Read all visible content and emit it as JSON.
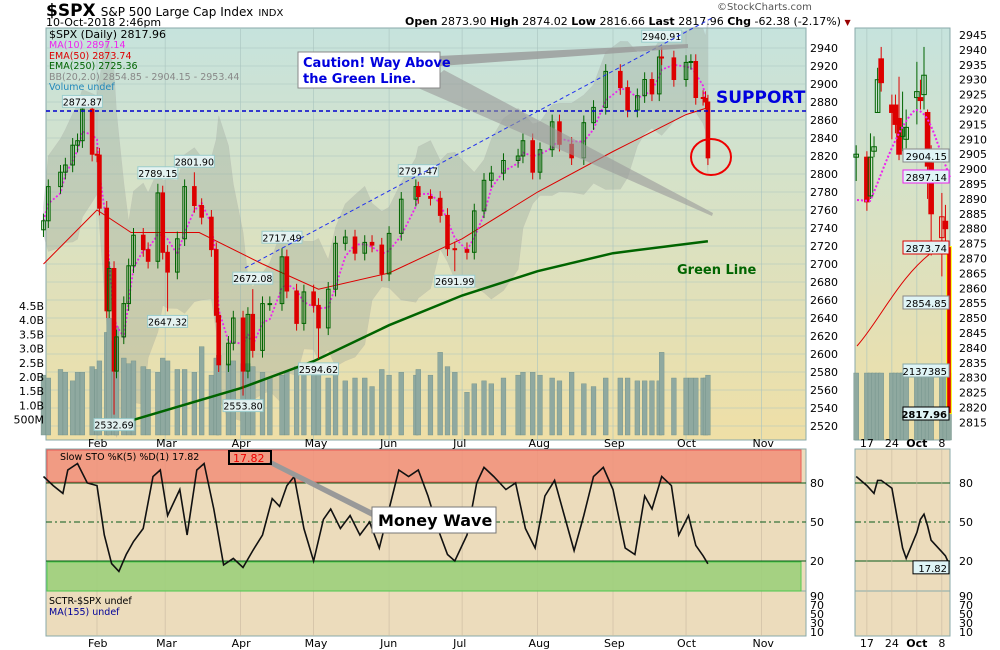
{
  "header": {
    "symbol": "$SPX",
    "name": "S&P 500 Large Cap Index",
    "exchange": "INDX",
    "datetime": "10-Oct-2018 2:46pm",
    "watermark": "©StockCharts.com",
    "open_label": "Open",
    "open": "2873.90",
    "high_label": "High",
    "high": "2874.02",
    "low_label": "Low",
    "low": "2816.66",
    "last_label": "Last",
    "last": "2817.96",
    "chg_label": "Chg",
    "chg": "-62.38 (-2.17%)",
    "chg_icon": "triangle-down-icon"
  },
  "legend": {
    "price": "$SPX (Daily) 2817.96",
    "ma10": "MA(10) 2897.14",
    "ema50": "EMA(50) 2873.74",
    "ema250": "EMA(250) 2725.36",
    "bb": "BB(20,2.0) 2854.85 - 2904.15 - 2953.44",
    "volume": "Volume undef"
  },
  "annotations": {
    "caution": "Caution! Way Above",
    "caution2": "the Green Line.",
    "support": "SUPPORT",
    "green_line": "Green Line",
    "money_wave": "Money Wave"
  },
  "colors": {
    "up": "#006400",
    "down": "#dd0000",
    "ma10": "#ee22ee",
    "ema50": "#dd0000",
    "ema250": "#006400",
    "support": "#0000cc",
    "annotation": "#0000dd"
  },
  "lower": {
    "sto_legend": "Slow STO %K(5) %D(1) 17.82",
    "sto_value": "17.82",
    "sctr_legend": "SCTR-$SPX undef",
    "ma155_legend": "MA(155) undef"
  },
  "side": {
    "labels": [
      "2904.15",
      "2897.14",
      "2873.74",
      "2854.85",
      "2137385",
      "2817.96"
    ],
    "sto_value": "17.82"
  },
  "chart_data": [
    {
      "type": "candlestick",
      "title": "$SPX (Daily)",
      "ylim": [
        2515,
        2950
      ],
      "yticks": [
        2520,
        2540,
        2560,
        2580,
        2600,
        2620,
        2640,
        2660,
        2680,
        2700,
        2720,
        2740,
        2760,
        2780,
        2800,
        2820,
        2840,
        2860,
        2880,
        2900,
        2920,
        2940
      ],
      "xticks": [
        "Feb",
        "Mar",
        "Apr",
        "May",
        "Jun",
        "Jul",
        "Aug",
        "Sep",
        "Oct",
        "Nov"
      ],
      "volume_ticks": [
        "4.5B",
        "4.0B",
        "3.5B",
        "3.0B",
        "2.5B",
        "2.0B",
        "1.5B",
        "1.0B",
        "500M"
      ],
      "support_level": 2872.87,
      "price_labels": [
        {
          "d": "2018-01-26",
          "p": 2872.87,
          "t": "2872.87"
        },
        {
          "d": "2018-02-08",
          "p": 2532.69,
          "t": "2532.69"
        },
        {
          "d": "2018-02-26",
          "p": 2789.15,
          "t": "2789.15"
        },
        {
          "d": "2018-03-02",
          "p": 2647.32,
          "t": "2647.32"
        },
        {
          "d": "2018-03-13",
          "p": 2801.9,
          "t": "2801.90"
        },
        {
          "d": "2018-04-02",
          "p": 2553.8,
          "t": "2553.80"
        },
        {
          "d": "2018-04-06",
          "p": 2672.08,
          "t": "2672.08"
        },
        {
          "d": "2018-04-18",
          "p": 2717.49,
          "t": "2717.49"
        },
        {
          "d": "2018-05-03",
          "p": 2594.62,
          "t": "2594.62"
        },
        {
          "d": "2018-06-13",
          "p": 2791.47,
          "t": "2791.47"
        },
        {
          "d": "2018-06-28",
          "p": 2691.99,
          "t": "2691.99"
        },
        {
          "d": "2018-09-21",
          "p": 2940.91,
          "t": "2940.91"
        }
      ],
      "closes": [
        [
          "2018-01-10",
          2748,
          2.1
        ],
        [
          "2018-01-12",
          2786,
          2.0
        ],
        [
          "2018-01-17",
          2802,
          2.3
        ],
        [
          "2018-01-19",
          2810,
          2.2
        ],
        [
          "2018-01-22",
          2832,
          1.9
        ],
        [
          "2018-01-24",
          2837,
          2.2
        ],
        [
          "2018-01-26",
          2872,
          2.2
        ],
        [
          "2018-01-30",
          2822,
          2.4
        ],
        [
          "2018-02-01",
          2821,
          2.3
        ],
        [
          "2018-02-02",
          2762,
          2.6
        ],
        [
          "2018-02-05",
          2648,
          3.6
        ],
        [
          "2018-02-06",
          2695,
          4.1
        ],
        [
          "2018-02-08",
          2581,
          3.3
        ],
        [
          "2018-02-09",
          2619,
          3.8
        ],
        [
          "2018-02-12",
          2656,
          2.7
        ],
        [
          "2018-02-14",
          2698,
          2.5
        ],
        [
          "2018-02-16",
          2732,
          2.6
        ],
        [
          "2018-02-20",
          2716,
          2.4
        ],
        [
          "2018-02-22",
          2703,
          2.3
        ],
        [
          "2018-02-26",
          2779,
          2.2
        ],
        [
          "2018-02-28",
          2713,
          2.7
        ],
        [
          "2018-03-02",
          2691,
          2.6
        ],
        [
          "2018-03-06",
          2728,
          2.3
        ],
        [
          "2018-03-09",
          2786,
          2.3
        ],
        [
          "2018-03-13",
          2765,
          2.2
        ],
        [
          "2018-03-16",
          2752,
          3.1
        ],
        [
          "2018-03-20",
          2716,
          2.1
        ],
        [
          "2018-03-22",
          2643,
          2.7
        ],
        [
          "2018-03-23",
          2588,
          2.8
        ],
        [
          "2018-03-27",
          2612,
          2.5
        ],
        [
          "2018-03-29",
          2640,
          2.6
        ],
        [
          "2018-04-02",
          2581,
          2.5
        ],
        [
          "2018-04-04",
          2644,
          2.5
        ],
        [
          "2018-04-06",
          2604,
          2.4
        ],
        [
          "2018-04-10",
          2656,
          2.2
        ],
        [
          "2018-04-13",
          2656,
          2.0
        ],
        [
          "2018-04-18",
          2708,
          2.1
        ],
        [
          "2018-04-20",
          2670,
          2.2
        ],
        [
          "2018-04-24",
          2634,
          2.4
        ],
        [
          "2018-04-27",
          2669,
          2.1
        ],
        [
          "2018-05-01",
          2654,
          2.2
        ],
        [
          "2018-05-03",
          2629,
          2.4
        ],
        [
          "2018-05-07",
          2672,
          2.0
        ],
        [
          "2018-05-10",
          2723,
          2.1
        ],
        [
          "2018-05-14",
          2730,
          1.9
        ],
        [
          "2018-05-18",
          2712,
          2.0
        ],
        [
          "2018-05-22",
          2724,
          2.0
        ],
        [
          "2018-05-25",
          2721,
          1.7
        ],
        [
          "2018-05-29",
          2689,
          2.3
        ],
        [
          "2018-06-01",
          2734,
          2.1
        ],
        [
          "2018-06-06",
          2772,
          2.2
        ],
        [
          "2018-06-12",
          2786,
          2.1
        ],
        [
          "2018-06-13",
          2775,
          2.3
        ],
        [
          "2018-06-18",
          2773,
          2.1
        ],
        [
          "2018-06-22",
          2754,
          2.9
        ],
        [
          "2018-06-25",
          2717,
          2.4
        ],
        [
          "2018-06-28",
          2716,
          2.2
        ],
        [
          "2018-07-03",
          2713,
          1.5
        ],
        [
          "2018-07-06",
          2759,
          1.8
        ],
        [
          "2018-07-10",
          2793,
          1.9
        ],
        [
          "2018-07-13",
          2801,
          1.8
        ],
        [
          "2018-07-18",
          2815,
          2.0
        ],
        [
          "2018-07-24",
          2820,
          2.1
        ],
        [
          "2018-07-26",
          2837,
          2.2
        ],
        [
          "2018-07-30",
          2802,
          2.2
        ],
        [
          "2018-08-02",
          2827,
          2.1
        ],
        [
          "2018-08-07",
          2858,
          2.0
        ],
        [
          "2018-08-10",
          2833,
          1.9
        ],
        [
          "2018-08-15",
          2818,
          2.2
        ],
        [
          "2018-08-20",
          2857,
          1.8
        ],
        [
          "2018-08-24",
          2874,
          1.7
        ],
        [
          "2018-08-29",
          2914,
          2.0
        ],
        [
          "2018-09-04",
          2896,
          2.0
        ],
        [
          "2018-09-07",
          2871,
          2.0
        ],
        [
          "2018-09-11",
          2887,
          1.9
        ],
        [
          "2018-09-14",
          2905,
          1.9
        ],
        [
          "2018-09-17",
          2889,
          1.9
        ],
        [
          "2018-09-20",
          2930,
          1.9
        ],
        [
          "2018-09-21",
          2929,
          2.9
        ],
        [
          "2018-09-26",
          2905,
          2.0
        ],
        [
          "2018-10-01",
          2924,
          2.0
        ],
        [
          "2018-10-03",
          2925,
          2.0
        ],
        [
          "2018-10-05",
          2885,
          2.0
        ],
        [
          "2018-10-08",
          2884,
          2.0
        ],
        [
          "2018-10-09",
          2880,
          2.0
        ],
        [
          "2018-10-10",
          2817.96,
          2.1
        ]
      ],
      "ema50": [
        [
          "2018-01-10",
          2700
        ],
        [
          "2018-02-01",
          2760
        ],
        [
          "2018-02-15",
          2735
        ],
        [
          "2018-03-15",
          2735
        ],
        [
          "2018-04-10",
          2700
        ],
        [
          "2018-05-03",
          2672
        ],
        [
          "2018-06-01",
          2690
        ],
        [
          "2018-07-01",
          2728
        ],
        [
          "2018-08-01",
          2780
        ],
        [
          "2018-09-01",
          2825
        ],
        [
          "2018-10-01",
          2866
        ],
        [
          "2018-10-10",
          2873.74
        ]
      ],
      "ema250": [
        [
          "2018-02-15",
          2526
        ],
        [
          "2018-04-01",
          2562
        ],
        [
          "2018-05-01",
          2592
        ],
        [
          "2018-06-01",
          2632
        ],
        [
          "2018-07-01",
          2665
        ],
        [
          "2018-08-01",
          2692
        ],
        [
          "2018-09-01",
          2712
        ],
        [
          "2018-10-10",
          2725.36
        ]
      ]
    },
    {
      "type": "line",
      "title": "Slow STO %K(5) %D(1)",
      "ylim": [
        0,
        100
      ],
      "yticks": [
        20,
        50,
        80
      ],
      "sctr_ticks": [
        90,
        70,
        50,
        30,
        10
      ],
      "values": [
        [
          "2018-01-10",
          85
        ],
        [
          "2018-01-14",
          78
        ],
        [
          "2018-01-18",
          72
        ],
        [
          "2018-01-20",
          90
        ],
        [
          "2018-01-24",
          95
        ],
        [
          "2018-01-28",
          80
        ],
        [
          "2018-02-01",
          78
        ],
        [
          "2018-02-04",
          40
        ],
        [
          "2018-02-07",
          18
        ],
        [
          "2018-02-10",
          12
        ],
        [
          "2018-02-13",
          25
        ],
        [
          "2018-02-16",
          35
        ],
        [
          "2018-02-20",
          45
        ],
        [
          "2018-02-24",
          85
        ],
        [
          "2018-02-27",
          90
        ],
        [
          "2018-03-02",
          55
        ],
        [
          "2018-03-07",
          75
        ],
        [
          "2018-03-10",
          40
        ],
        [
          "2018-03-14",
          90
        ],
        [
          "2018-03-17",
          95
        ],
        [
          "2018-03-21",
          60
        ],
        [
          "2018-03-25",
          17
        ],
        [
          "2018-03-29",
          22
        ],
        [
          "2018-04-02",
          15
        ],
        [
          "2018-04-06",
          28
        ],
        [
          "2018-04-10",
          40
        ],
        [
          "2018-04-14",
          68
        ],
        [
          "2018-04-17",
          62
        ],
        [
          "2018-04-20",
          78
        ],
        [
          "2018-04-23",
          85
        ],
        [
          "2018-04-27",
          45
        ],
        [
          "2018-05-01",
          20
        ],
        [
          "2018-05-05",
          52
        ],
        [
          "2018-05-08",
          60
        ],
        [
          "2018-05-12",
          45
        ],
        [
          "2018-05-16",
          55
        ],
        [
          "2018-05-20",
          40
        ],
        [
          "2018-05-24",
          50
        ],
        [
          "2018-05-28",
          30
        ],
        [
          "2018-06-01",
          60
        ],
        [
          "2018-06-05",
          90
        ],
        [
          "2018-06-09",
          85
        ],
        [
          "2018-06-13",
          90
        ],
        [
          "2018-06-17",
          70
        ],
        [
          "2018-06-21",
          45
        ],
        [
          "2018-06-25",
          25
        ],
        [
          "2018-06-28",
          20
        ],
        [
          "2018-07-03",
          40
        ],
        [
          "2018-07-07",
          80
        ],
        [
          "2018-07-10",
          92
        ],
        [
          "2018-07-14",
          85
        ],
        [
          "2018-07-19",
          75
        ],
        [
          "2018-07-23",
          80
        ],
        [
          "2018-07-27",
          45
        ],
        [
          "2018-07-31",
          30
        ],
        [
          "2018-08-04",
          70
        ],
        [
          "2018-08-08",
          82
        ],
        [
          "2018-08-12",
          55
        ],
        [
          "2018-08-16",
          28
        ],
        [
          "2018-08-20",
          55
        ],
        [
          "2018-08-24",
          85
        ],
        [
          "2018-08-28",
          92
        ],
        [
          "2018-09-01",
          75
        ],
        [
          "2018-09-06",
          30
        ],
        [
          "2018-09-10",
          25
        ],
        [
          "2018-09-14",
          70
        ],
        [
          "2018-09-17",
          60
        ],
        [
          "2018-09-21",
          85
        ],
        [
          "2018-09-25",
          78
        ],
        [
          "2018-09-28",
          40
        ],
        [
          "2018-10-02",
          55
        ],
        [
          "2018-10-05",
          32
        ],
        [
          "2018-10-08",
          24
        ],
        [
          "2018-10-10",
          17.82
        ]
      ]
    },
    {
      "type": "candlestick",
      "title": "$SPX detail",
      "ylim": [
        2813,
        2947
      ],
      "yticks": [
        2815,
        2820,
        2825,
        2830,
        2835,
        2840,
        2845,
        2850,
        2855,
        2860,
        2865,
        2870,
        2875,
        2880,
        2885,
        2890,
        2895,
        2900,
        2905,
        2910,
        2915,
        2920,
        2925,
        2930,
        2935,
        2940,
        2945
      ],
      "xticks": [
        "17",
        "24",
        "Oct",
        "8"
      ],
      "ohlc": [
        [
          "2018-09-14",
          2904,
          2908,
          2896,
          2905
        ],
        [
          "2018-09-17",
          2904,
          2906,
          2886,
          2889
        ],
        [
          "2018-09-18",
          2891,
          2912,
          2890,
          2904
        ],
        [
          "2018-09-19",
          2906,
          2911,
          2904,
          2907.5
        ],
        [
          "2018-09-20",
          2919,
          2934,
          2919,
          2930
        ],
        [
          "2018-09-21",
          2937,
          2941,
          2926,
          2929
        ],
        [
          "2018-09-24",
          2921.5,
          2925,
          2910,
          2919
        ],
        [
          "2018-09-25",
          2921.5,
          2925,
          2912,
          2915
        ],
        [
          "2018-09-26",
          2917,
          2931,
          2903,
          2905
        ],
        [
          "2018-09-27",
          2911,
          2926,
          2906,
          2914
        ],
        [
          "2018-09-28",
          2910,
          2920,
          2907,
          2914
        ],
        [
          "2018-10-01",
          2924,
          2936,
          2915,
          2926
        ],
        [
          "2018-10-02",
          2924,
          2930,
          2920,
          2923
        ],
        [
          "2018-10-03",
          2925,
          2941,
          2920,
          2931.5
        ],
        [
          "2018-10-04",
          2919,
          2920,
          2890,
          2901
        ],
        [
          "2018-10-05",
          2902,
          2908,
          2871,
          2885
        ],
        [
          "2018-10-08",
          2877,
          2892,
          2864,
          2884
        ],
        [
          "2018-10-09",
          2882.5,
          2888,
          2873,
          2880
        ],
        [
          "2018-10-10",
          2874,
          2874.02,
          2816.66,
          2817.96
        ]
      ],
      "sto": [
        [
          "2018-09-14",
          85
        ],
        [
          "2018-09-17",
          78
        ],
        [
          "2018-09-19",
          72
        ],
        [
          "2018-09-20",
          82
        ],
        [
          "2018-09-21",
          82
        ],
        [
          "2018-09-24",
          76
        ],
        [
          "2018-09-27",
          30
        ],
        [
          "2018-09-28",
          22
        ],
        [
          "2018-10-01",
          42
        ],
        [
          "2018-10-02",
          52
        ],
        [
          "2018-10-03",
          56
        ],
        [
          "2018-10-04",
          47
        ],
        [
          "2018-10-05",
          36
        ],
        [
          "2018-10-08",
          27
        ],
        [
          "2018-10-09",
          24
        ],
        [
          "2018-10-10",
          17.82
        ]
      ]
    }
  ]
}
